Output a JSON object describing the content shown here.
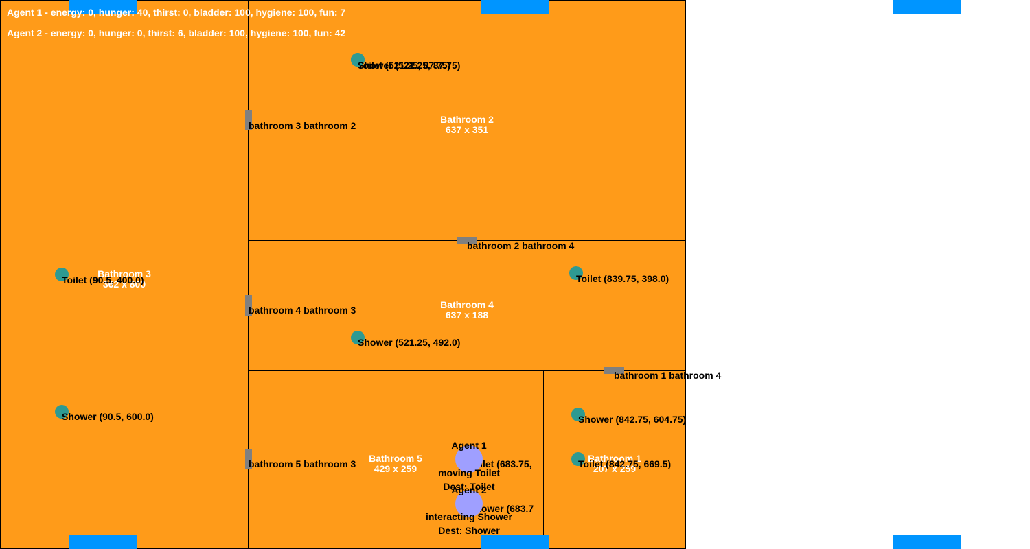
{
  "rooms": [
    {
      "id": "bathroom-3",
      "name": "Bathroom 3",
      "size": "362 x 800"
    },
    {
      "id": "bathroom-2",
      "name": "Bathroom 2",
      "size": "637 x 351"
    },
    {
      "id": "bathroom-4",
      "name": "Bathroom 4",
      "size": "637 x 188"
    },
    {
      "id": "bathroom-5",
      "name": "Bathroom 5",
      "size": "429 x 259"
    },
    {
      "id": "bathroom-1",
      "name": "Bathroom 1",
      "size": "207 x 259"
    }
  ],
  "doors": [
    {
      "label": "bathroom 3 bathroom 2"
    },
    {
      "label": "bathroom 2 bathroom 4"
    },
    {
      "label": "bathroom 4 bathroom 3"
    },
    {
      "label": "bathroom 1 bathroom 4"
    },
    {
      "label": "bathroom 5 bathroom 3"
    }
  ],
  "objects": [
    {
      "label": "Toilet (521.25, 87.75)"
    },
    {
      "label": "Shower (521.25, 87.75)"
    },
    {
      "label": "Toilet (90.5, 400.0)"
    },
    {
      "label": "Shower (90.5, 600.0)"
    },
    {
      "label": "Toilet (839.75, 398.0)"
    },
    {
      "label": "Shower (521.25, 492.0)"
    },
    {
      "label": "Shower (842.75, 604.75)"
    },
    {
      "label": "Toilet (842.75, 669.5)"
    },
    {
      "label": "Toilet (683.75,"
    },
    {
      "label": "Shower (683.7"
    }
  ],
  "agents": [
    {
      "name": "Agent 1",
      "state": "moving Toilet",
      "dest": "Dest: Toilet"
    },
    {
      "name": "Agent 2",
      "state": "interacting Shower",
      "dest": "Dest: Shower"
    }
  ],
  "status_lines": [
    "Agent 1 - energy: 0, hunger: 40, thirst: 0, bladder: 100, hygiene: 100, fun: 7",
    "Agent 2 - energy: 0, hunger: 0, thirst: 6, bladder: 100, hygiene: 100, fun: 42"
  ],
  "colors": {
    "room": "#FF9B19",
    "door": "#808080",
    "object": "#2E9A92",
    "agent": "#9F9FFF",
    "window": "#0095FF"
  }
}
